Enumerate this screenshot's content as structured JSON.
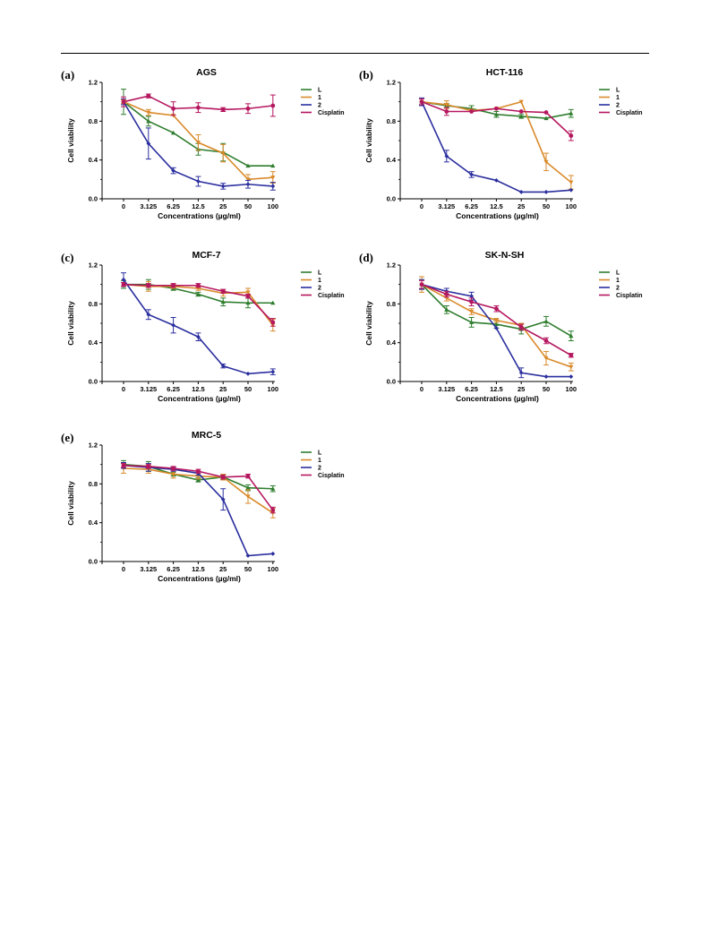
{
  "colors": {
    "L": "#2e7d2e",
    "1": "#d98a2b",
    "2": "#2b2f9e",
    "Cisplatin": "#b5175f"
  },
  "chart_data": [
    {
      "tag": "(a)",
      "title": "AGS",
      "type": "line",
      "xlabel": "Concentrations (µg/ml)",
      "ylabel": "Cell viability",
      "x_ticks": [
        "0",
        "3.125",
        "6.25",
        "12.5",
        "25",
        "50",
        "100"
      ],
      "y_ticks": [
        "0.0",
        "0.4",
        "0.8",
        "1.2"
      ],
      "ylim": [
        0,
        1.2
      ],
      "series": [
        {
          "name": "L",
          "values": [
            1.0,
            0.8,
            0.68,
            0.51,
            0.48,
            0.34,
            0.34
          ],
          "errors": [
            0.13,
            0.05,
            0.0,
            0.06,
            0.09,
            0.0,
            0.0
          ]
        },
        {
          "name": "1",
          "values": [
            1.0,
            0.89,
            0.86,
            0.58,
            0.47,
            0.2,
            0.22
          ],
          "errors": [
            0.02,
            0.03,
            0.0,
            0.08,
            0.09,
            0.05,
            0.06
          ]
        },
        {
          "name": "2",
          "values": [
            1.0,
            0.57,
            0.29,
            0.18,
            0.13,
            0.15,
            0.13
          ],
          "errors": [
            0.03,
            0.16,
            0.03,
            0.05,
            0.03,
            0.04,
            0.04
          ]
        },
        {
          "name": "Cisplatin",
          "values": [
            1.0,
            1.06,
            0.93,
            0.94,
            0.92,
            0.93,
            0.96
          ],
          "errors": [
            0.05,
            0.02,
            0.07,
            0.05,
            0.02,
            0.05,
            0.11
          ]
        }
      ]
    },
    {
      "tag": "(b)",
      "title": "HCT-116",
      "type": "line",
      "xlabel": "Concentrations (µg/ml)",
      "ylabel": "Cell viability",
      "x_ticks": [
        "0",
        "3.125",
        "6.25",
        "12.5",
        "25",
        "50",
        "100"
      ],
      "y_ticks": [
        "0.0",
        "0.4",
        "0.8",
        "1.2"
      ],
      "ylim": [
        0,
        1.2
      ],
      "series": [
        {
          "name": "L",
          "values": [
            1.0,
            0.96,
            0.93,
            0.87,
            0.85,
            0.83,
            0.88
          ],
          "errors": [
            0.03,
            0.02,
            0.03,
            0.03,
            0.02,
            0.0,
            0.04
          ]
        },
        {
          "name": "1",
          "values": [
            1.0,
            0.97,
            0.91,
            0.93,
            1.0,
            0.38,
            0.17
          ],
          "errors": [
            0.03,
            0.04,
            0.0,
            0.0,
            0.0,
            0.09,
            0.07
          ]
        },
        {
          "name": "2",
          "values": [
            1.0,
            0.44,
            0.25,
            0.19,
            0.07,
            0.07,
            0.09
          ],
          "errors": [
            0.04,
            0.06,
            0.03,
            0.0,
            0.0,
            0.0,
            0.0
          ]
        },
        {
          "name": "Cisplatin",
          "values": [
            1.0,
            0.9,
            0.9,
            0.93,
            0.9,
            0.89,
            0.65
          ],
          "errors": [
            0.03,
            0.04,
            0.0,
            0.0,
            0.0,
            0.0,
            0.05
          ]
        }
      ]
    },
    {
      "tag": "(c)",
      "title": "MCF-7",
      "type": "line",
      "xlabel": "Concentrations (µg/ml)",
      "ylabel": "Cell viability",
      "x_ticks": [
        "0",
        "3.125",
        "6.25",
        "12.5",
        "25",
        "50",
        "100"
      ],
      "y_ticks": [
        "0.0",
        "0.4",
        "0.8",
        "1.2"
      ],
      "ylim": [
        0,
        1.2
      ],
      "series": [
        {
          "name": "L",
          "values": [
            1.0,
            1.0,
            0.96,
            0.9,
            0.82,
            0.81,
            0.81
          ],
          "errors": [
            0.04,
            0.05,
            0.02,
            0.02,
            0.04,
            0.05,
            0.0
          ]
        },
        {
          "name": "1",
          "values": [
            1.0,
            0.98,
            0.98,
            0.96,
            0.91,
            0.92,
            0.58
          ],
          "errors": [
            0.02,
            0.05,
            0.02,
            0.02,
            0.03,
            0.04,
            0.06
          ]
        },
        {
          "name": "2",
          "values": [
            1.05,
            0.69,
            0.58,
            0.46,
            0.16,
            0.08,
            0.1
          ],
          "errors": [
            0.07,
            0.05,
            0.08,
            0.04,
            0.02,
            0.0,
            0.03
          ]
        },
        {
          "name": "Cisplatin",
          "values": [
            1.0,
            0.99,
            0.99,
            0.99,
            0.93,
            0.88,
            0.61
          ],
          "errors": [
            0.02,
            0.02,
            0.02,
            0.02,
            0.02,
            0.02,
            0.04
          ]
        }
      ]
    },
    {
      "tag": "(d)",
      "title": "SK-N-SH",
      "type": "line",
      "xlabel": "Concentrations (µg/ml)",
      "ylabel": "Cell viability",
      "x_ticks": [
        "0",
        "3.125",
        "6.25",
        "12.5",
        "25",
        "50",
        "100"
      ],
      "y_ticks": [
        "0.0",
        "0.4",
        "0.8",
        "1.2"
      ],
      "ylim": [
        0,
        1.2
      ],
      "series": [
        {
          "name": "L",
          "values": [
            1.0,
            0.74,
            0.61,
            0.59,
            0.54,
            0.62,
            0.47
          ],
          "errors": [
            0.05,
            0.04,
            0.05,
            0.04,
            0.05,
            0.05,
            0.05
          ]
        },
        {
          "name": "1",
          "values": [
            1.0,
            0.86,
            0.72,
            0.63,
            0.58,
            0.24,
            0.15
          ],
          "errors": [
            0.08,
            0.03,
            0.03,
            0.02,
            0.02,
            0.07,
            0.04
          ]
        },
        {
          "name": "2",
          "values": [
            1.0,
            0.93,
            0.88,
            0.55,
            0.09,
            0.05,
            0.05
          ],
          "errors": [
            0.05,
            0.03,
            0.04,
            0.0,
            0.05,
            0.0,
            0.0
          ]
        },
        {
          "name": "Cisplatin",
          "values": [
            1.0,
            0.9,
            0.82,
            0.75,
            0.56,
            0.42,
            0.27
          ],
          "errors": [
            0.04,
            0.03,
            0.04,
            0.03,
            0.03,
            0.03,
            0.02
          ]
        }
      ]
    },
    {
      "tag": "(e)",
      "title": "MRC-5",
      "type": "line",
      "xlabel": "Concentrations (µg/ml)",
      "ylabel": "Cell viability",
      "x_ticks": [
        "0",
        "3.125",
        "6.25",
        "12.5",
        "25",
        "50",
        "100"
      ],
      "y_ticks": [
        "0.0",
        "0.4",
        "0.8",
        "1.2"
      ],
      "ylim": [
        0,
        1.2
      ],
      "series": [
        {
          "name": "L",
          "values": [
            1.0,
            0.98,
            0.9,
            0.84,
            0.87,
            0.76,
            0.75
          ],
          "errors": [
            0.04,
            0.05,
            0.02,
            0.02,
            0.02,
            0.03,
            0.03
          ]
        },
        {
          "name": "1",
          "values": [
            0.96,
            0.95,
            0.9,
            0.88,
            0.87,
            0.67,
            0.5
          ],
          "errors": [
            0.05,
            0.04,
            0.04,
            0.03,
            0.03,
            0.07,
            0.05
          ]
        },
        {
          "name": "2",
          "values": [
            0.99,
            0.97,
            0.95,
            0.91,
            0.64,
            0.06,
            0.08
          ],
          "errors": [
            0.03,
            0.04,
            0.02,
            0.02,
            0.11,
            0.0,
            0.0
          ]
        },
        {
          "name": "Cisplatin",
          "values": [
            0.99,
            0.98,
            0.96,
            0.93,
            0.87,
            0.88,
            0.53
          ],
          "errors": [
            0.02,
            0.02,
            0.02,
            0.02,
            0.02,
            0.02,
            0.03
          ]
        }
      ]
    }
  ]
}
